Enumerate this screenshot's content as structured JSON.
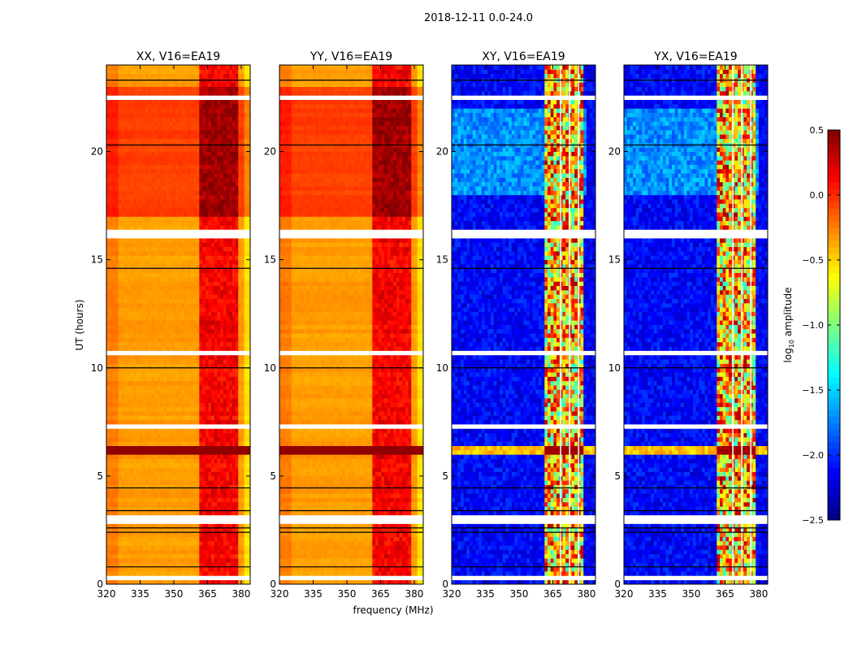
{
  "chart_data": {
    "type": "heatmap",
    "title": "2018-12-11 0.0-24.0",
    "xlabel": "frequency (MHz)",
    "ylabel": "UT (hours)",
    "xlim": [
      320,
      384
    ],
    "ylim": [
      0,
      24
    ],
    "xticks": [
      "320",
      "335",
      "350",
      "365",
      "380"
    ],
    "yticks": [
      "0",
      "5",
      "10",
      "15",
      "20"
    ],
    "panels": [
      {
        "title": "XX, V16=EA19",
        "kind": "parallel"
      },
      {
        "title": "YY, V16=EA19",
        "kind": "parallel"
      },
      {
        "title": "XY, V16=EA19",
        "kind": "cross"
      },
      {
        "title": "YX, V16=EA19",
        "kind": "cross"
      }
    ],
    "colorbar": {
      "label_main": "log",
      "label_sub": "10",
      "label_rest": " amplitude",
      "range": [
        -2.5,
        0.5
      ],
      "ticks": [
        "0.5",
        "0.0",
        "−0.5",
        "−1.0",
        "−1.5",
        "−2.0",
        "−2.5"
      ],
      "tick_values": [
        0.5,
        0.0,
        -0.5,
        -1.0,
        -1.5,
        -2.0,
        -2.5
      ],
      "colormap": "jet"
    },
    "levels": {
      "parallel_base": -0.4,
      "parallel_base_17_23h": -0.12,
      "cross_base": -2.3,
      "cross_base_18_22h": -1.9
    },
    "rfi_bands_mhz": [
      [
        361,
        366
      ],
      [
        366,
        370
      ],
      [
        370,
        374
      ],
      [
        374,
        379
      ]
    ],
    "bright_interval_h": [
      6.0,
      6.5
    ],
    "flagged_intervals_h": [
      [
        16.0,
        16.5
      ],
      [
        22.45,
        22.7
      ],
      [
        10.7,
        10.9
      ],
      [
        2.9,
        3.2
      ],
      [
        0.2,
        0.45
      ],
      [
        12.6,
        12.7
      ],
      [
        13.0,
        13.1
      ],
      [
        13.4,
        13.5
      ],
      [
        17.8,
        17.9
      ],
      [
        18.0,
        18.1
      ],
      [
        7.2,
        7.35
      ],
      [
        8.6,
        8.7
      ],
      [
        1.95,
        2.05
      ],
      [
        0.75,
        0.85
      ]
    ],
    "black_lines_h": [
      23.3,
      20.3,
      14.6,
      10.0,
      4.45,
      3.4,
      2.6,
      2.4,
      0.8
    ]
  }
}
